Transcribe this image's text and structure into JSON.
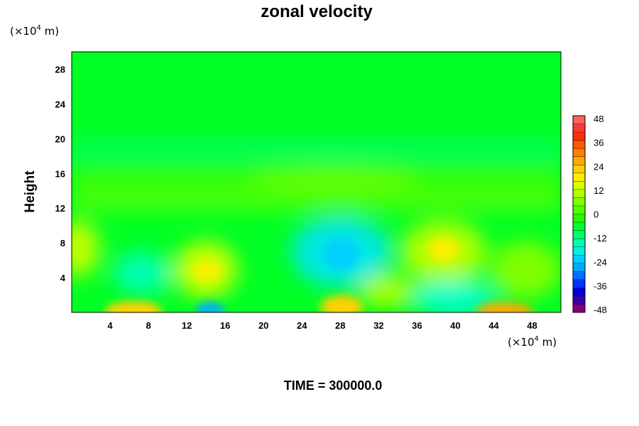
{
  "chart_data": {
    "type": "heatmap",
    "title": "zonal velocity",
    "xlabel": "",
    "ylabel": "Height",
    "x_unit": {
      "prefix": "(×10",
      "exp": "4",
      "suffix": " m)"
    },
    "y_unit": {
      "prefix": "(×10",
      "exp": "4",
      "suffix": " m)"
    },
    "xlim": [
      0,
      51
    ],
    "ylim": [
      0,
      30
    ],
    "x_ticks": [
      4,
      8,
      12,
      16,
      20,
      24,
      28,
      32,
      36,
      40,
      44,
      48
    ],
    "y_ticks": [
      4,
      8,
      12,
      16,
      20,
      24,
      28
    ],
    "colorbar": {
      "min": -48,
      "max": 48,
      "step": 4,
      "tick_labels": [
        48,
        36,
        24,
        12,
        0,
        -12,
        -24,
        -36,
        -48
      ],
      "colors": [
        "#800080",
        "#3a00a8",
        "#0000d8",
        "#0030ff",
        "#0070ff",
        "#00a8ff",
        "#00d0ff",
        "#00f0e8",
        "#00ffb0",
        "#00ff70",
        "#00ff30",
        "#20ff00",
        "#50ff00",
        "#80ff00",
        "#b0ff00",
        "#d8ff00",
        "#f8f000",
        "#ffd000",
        "#ffa800",
        "#ff8000",
        "#ff5800",
        "#ff3000",
        "#ff3838",
        "#ff6060"
      ]
    },
    "features": [
      {
        "x": 7,
        "y": 0.3,
        "value": 26
      },
      {
        "x": 15,
        "y": 0.3,
        "value": -30
      },
      {
        "x": 28,
        "y": 0.3,
        "value": 26
      },
      {
        "x": 45,
        "y": 0.3,
        "value": 28
      },
      {
        "x": 15,
        "y": 4.8,
        "value": 18
      },
      {
        "x": 29,
        "y": 7,
        "value": -18
      },
      {
        "x": 39,
        "y": 7.5,
        "value": 16
      },
      {
        "x": 1,
        "y": 7.5,
        "value": 12
      },
      {
        "x": 8,
        "y": 4,
        "value": -10
      },
      {
        "x": 36,
        "y": 1.5,
        "value": -12
      }
    ]
  },
  "footer": {
    "time_label": "TIME = 300000.0"
  }
}
